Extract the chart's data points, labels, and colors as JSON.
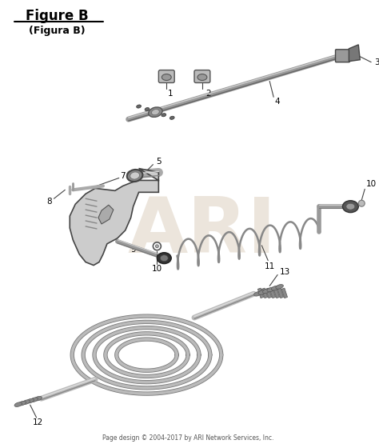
{
  "title": "Figure B",
  "subtitle": "(Figura B)",
  "footer": "Page design © 2004-2017 by ARI Network Services, Inc.",
  "bg": "#ffffff",
  "lc": "#444444",
  "gray1": "#555555",
  "gray2": "#888888",
  "gray3": "#aaaaaa",
  "gray4": "#cccccc",
  "dark": "#333333",
  "wm_color": "#ddd0c0",
  "figsize": [
    4.74,
    5.6
  ],
  "dpi": 100
}
